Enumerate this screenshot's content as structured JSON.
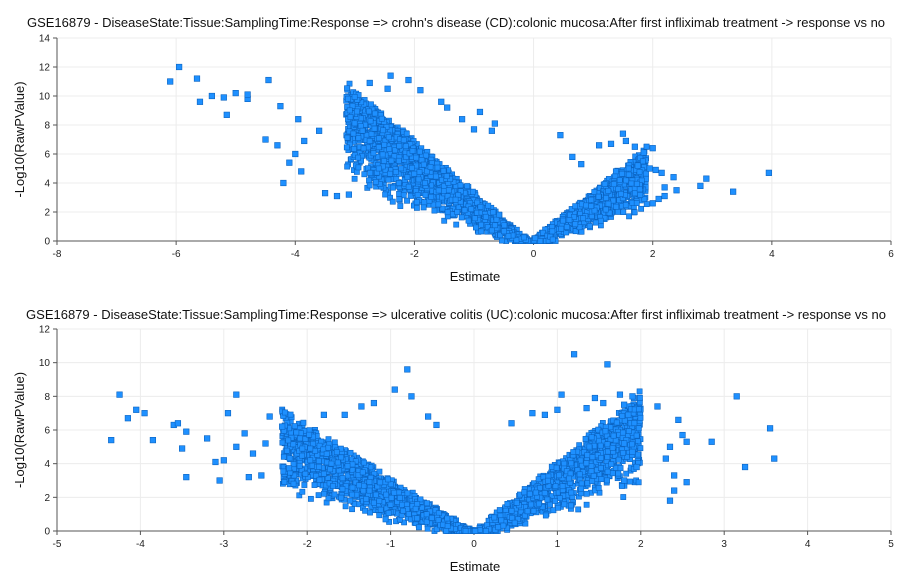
{
  "chart_data": [
    {
      "type": "scatter",
      "title": "GSE16879 - DiseaseState:Tissue:SamplingTime:Response => crohn's disease (CD):colonic mucosa:After first infliximab treatment -> response vs no",
      "xlabel": "Estimate",
      "ylabel": "-Log10(RawPValue)",
      "xlim": [
        -8,
        6
      ],
      "ylim": [
        0,
        14
      ],
      "xticks": [
        -8,
        -6,
        -4,
        -2,
        0,
        2,
        4,
        6
      ],
      "yticks": [
        0,
        2,
        4,
        6,
        8,
        10,
        12,
        14
      ],
      "grid": true,
      "marker_color": "#1e90ff",
      "points": [
        [
          -6.1,
          11.0
        ],
        [
          -5.95,
          12.0
        ],
        [
          -5.65,
          11.2
        ],
        [
          -5.6,
          9.6
        ],
        [
          -5.4,
          10.0
        ],
        [
          -5.2,
          9.9
        ],
        [
          -5.0,
          10.2
        ],
        [
          -5.15,
          8.7
        ],
        [
          -4.8,
          9.8
        ],
        [
          -4.8,
          10.1
        ],
        [
          -4.45,
          11.1
        ],
        [
          -4.25,
          9.3
        ],
        [
          -4.5,
          7.0
        ],
        [
          -4.3,
          6.6
        ],
        [
          -4.1,
          5.4
        ],
        [
          -4.0,
          6.0
        ],
        [
          -3.9,
          4.8
        ],
        [
          -4.2,
          4.0
        ],
        [
          -3.95,
          8.4
        ],
        [
          -3.85,
          6.9
        ],
        [
          -3.6,
          7.6
        ],
        [
          -3.5,
          3.3
        ],
        [
          -3.3,
          3.1
        ],
        [
          -3.1,
          3.2
        ],
        [
          -2.75,
          10.9
        ],
        [
          -2.45,
          10.5
        ],
        [
          -2.4,
          11.4
        ],
        [
          -2.1,
          11.1
        ],
        [
          -1.9,
          10.4
        ],
        [
          -1.55,
          9.6
        ],
        [
          -1.45,
          9.2
        ],
        [
          -1.2,
          8.4
        ],
        [
          -0.9,
          8.9
        ],
        [
          -0.65,
          8.1
        ],
        [
          -0.7,
          7.6
        ],
        [
          -1.0,
          7.7
        ],
        [
          0.45,
          7.3
        ],
        [
          0.8,
          5.3
        ],
        [
          0.65,
          5.8
        ],
        [
          1.1,
          6.6
        ],
        [
          1.3,
          6.7
        ],
        [
          1.5,
          7.4
        ],
        [
          1.55,
          6.9
        ],
        [
          1.7,
          6.5
        ],
        [
          1.75,
          5.2
        ],
        [
          1.85,
          6.1
        ],
        [
          1.95,
          5.0
        ],
        [
          2.0,
          6.4
        ],
        [
          2.05,
          4.9
        ],
        [
          2.15,
          4.7
        ],
        [
          2.2,
          3.7
        ],
        [
          2.2,
          3.1
        ],
        [
          2.35,
          4.4
        ],
        [
          2.4,
          3.5
        ],
        [
          2.8,
          3.8
        ],
        [
          2.9,
          4.3
        ],
        [
          3.35,
          3.4
        ],
        [
          3.95,
          4.7
        ],
        [
          2.1,
          2.9
        ],
        [
          2.0,
          2.6
        ]
      ]
    },
    {
      "type": "scatter",
      "title": "GSE16879 - DiseaseState:Tissue:SamplingTime:Response => ulcerative colitis (UC):colonic mucosa:After first infliximab treatment -> response vs no",
      "xlabel": "Estimate",
      "ylabel": "-Log10(RawPValue)",
      "xlim": [
        -5,
        5
      ],
      "ylim": [
        0,
        12
      ],
      "xticks": [
        -5,
        -4,
        -3,
        -2,
        -1,
        0,
        1,
        2,
        3,
        4,
        5
      ],
      "yticks": [
        0,
        2,
        4,
        6,
        8,
        10,
        12
      ],
      "grid": true,
      "marker_color": "#1e90ff",
      "points": [
        [
          -4.25,
          8.1
        ],
        [
          -4.05,
          7.2
        ],
        [
          -3.95,
          7.0
        ],
        [
          -4.15,
          6.7
        ],
        [
          -3.85,
          5.4
        ],
        [
          -4.35,
          5.4
        ],
        [
          -3.6,
          6.3
        ],
        [
          -3.55,
          6.4
        ],
        [
          -3.45,
          5.9
        ],
        [
          -3.5,
          4.9
        ],
        [
          -3.45,
          3.2
        ],
        [
          -3.2,
          5.5
        ],
        [
          -3.1,
          4.1
        ],
        [
          -3.0,
          4.2
        ],
        [
          -3.05,
          3.0
        ],
        [
          -2.95,
          7.0
        ],
        [
          -2.85,
          5.0
        ],
        [
          -2.75,
          5.8
        ],
        [
          -2.65,
          4.6
        ],
        [
          -2.7,
          3.2
        ],
        [
          -2.55,
          3.3
        ],
        [
          -2.5,
          5.2
        ],
        [
          -2.85,
          8.1
        ],
        [
          -2.45,
          6.8
        ],
        [
          -2.3,
          6.2
        ],
        [
          -1.8,
          6.9
        ],
        [
          -1.55,
          6.9
        ],
        [
          -1.35,
          7.4
        ],
        [
          -1.2,
          7.6
        ],
        [
          -0.95,
          8.4
        ],
        [
          -0.8,
          9.6
        ],
        [
          -0.75,
          8.0
        ],
        [
          -0.55,
          6.8
        ],
        [
          -0.45,
          6.3
        ],
        [
          0.45,
          6.4
        ],
        [
          0.7,
          7.0
        ],
        [
          0.85,
          6.9
        ],
        [
          1.0,
          7.2
        ],
        [
          1.05,
          8.1
        ],
        [
          1.2,
          10.5
        ],
        [
          1.35,
          7.3
        ],
        [
          1.45,
          7.9
        ],
        [
          1.55,
          7.6
        ],
        [
          1.6,
          9.9
        ],
        [
          1.75,
          8.1
        ],
        [
          1.8,
          7.5
        ],
        [
          1.9,
          8.0
        ],
        [
          1.85,
          6.9
        ],
        [
          1.8,
          5.2
        ],
        [
          1.9,
          4.7
        ],
        [
          1.95,
          3.8
        ],
        [
          1.8,
          3.0
        ],
        [
          2.2,
          7.4
        ],
        [
          2.3,
          4.3
        ],
        [
          2.35,
          5.0
        ],
        [
          2.4,
          3.3
        ],
        [
          2.45,
          6.6
        ],
        [
          2.5,
          5.7
        ],
        [
          2.55,
          5.3
        ],
        [
          2.4,
          2.4
        ],
        [
          2.35,
          1.8
        ],
        [
          2.55,
          2.9
        ],
        [
          2.85,
          5.3
        ],
        [
          3.15,
          8.0
        ],
        [
          3.25,
          3.8
        ],
        [
          3.55,
          6.1
        ],
        [
          3.6,
          4.3
        ]
      ]
    }
  ]
}
